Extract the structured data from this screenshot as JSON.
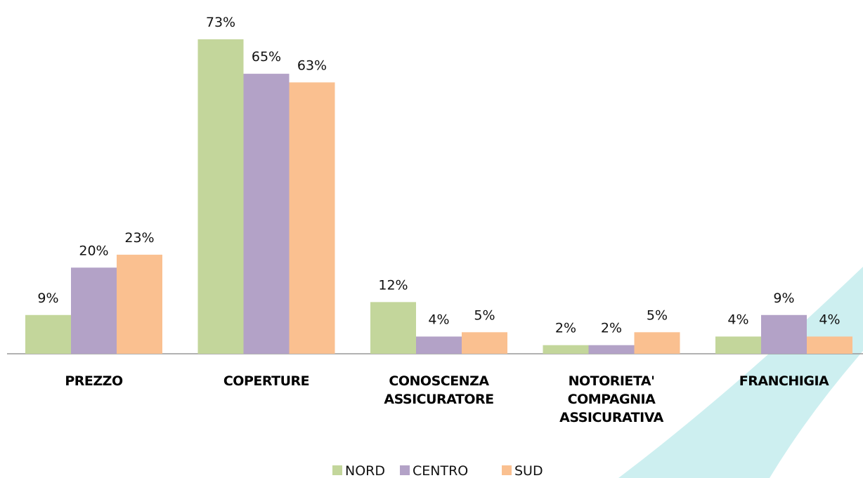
{
  "chart_data": {
    "type": "bar",
    "categories": [
      "PREZZO",
      "COPERTURE",
      "CONOSCENZA\nASSICURATORE",
      "NOTORIETA'\nCOMPAGNIA\nASSICURATIVA",
      "FRANCHIGIA"
    ],
    "series": [
      {
        "name": "NORD",
        "color": "#c3d69b",
        "values": [
          9,
          73,
          12,
          2,
          4
        ],
        "value_labels": [
          "9%",
          "73%",
          "12%",
          "2%",
          "4%"
        ]
      },
      {
        "name": "CENTRO",
        "color": "#b3a2c7",
        "values": [
          20,
          65,
          4,
          2,
          9
        ],
        "value_labels": [
          "20%",
          "65%",
          "4%",
          "2%",
          "9%"
        ]
      },
      {
        "name": "SUD",
        "color": "#fac090",
        "values": [
          23,
          63,
          5,
          5,
          4
        ],
        "value_labels": [
          "23%",
          "63%",
          "5%",
          "5%",
          "4%"
        ]
      }
    ],
    "legend": "bottom"
  }
}
